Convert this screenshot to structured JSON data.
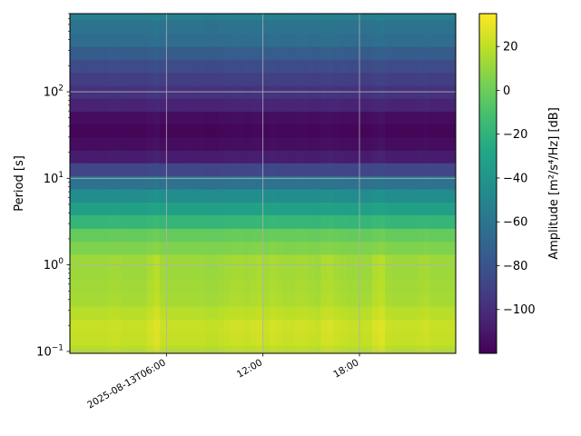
{
  "chart_data": {
    "type": "heatmap",
    "title": "",
    "xlabel": "",
    "ylabel": "Period [s]",
    "x_axis": {
      "kind": "datetime",
      "range": [
        "2025-08-13T00:00",
        "2025-08-13T23:59"
      ],
      "ticks": [
        {
          "value": "2025-08-13T06:00",
          "label": "2025-08-13T06:00"
        },
        {
          "value": "2025-08-13T12:00",
          "label": "12:00"
        },
        {
          "value": "2025-08-13T18:00",
          "label": "18:00"
        }
      ]
    },
    "y_axis": {
      "scale": "log",
      "range": [
        0.095,
        800
      ],
      "ticks": [
        {
          "value": 0.1,
          "base": "10",
          "exp": "−1"
        },
        {
          "value": 1,
          "base": "10",
          "exp": "0"
        },
        {
          "value": 10,
          "base": "10",
          "exp": "1"
        },
        {
          "value": 100,
          "base": "10",
          "exp": "2"
        }
      ]
    },
    "grid": true,
    "colorbar": {
      "label": "Amplitude [m²/s⁴/Hz] [dB]",
      "colormap": "viridis",
      "range": [
        -120,
        35
      ],
      "ticks": [
        {
          "value": 20,
          "label": "20"
        },
        {
          "value": 0,
          "label": "0"
        },
        {
          "value": -20,
          "label": "−20"
        },
        {
          "value": -40,
          "label": "−40"
        },
        {
          "value": -60,
          "label": "−60"
        },
        {
          "value": -80,
          "label": "−80"
        },
        {
          "value": -100,
          "label": "−100"
        }
      ]
    },
    "periods": [
      0.1,
      0.14,
      0.2,
      0.28,
      0.4,
      0.56,
      0.8,
      1.1,
      1.6,
      2.2,
      3.2,
      4.5,
      6.3,
      9,
      12.7,
      18,
      25,
      36,
      50,
      71,
      100,
      141,
      200,
      283,
      400,
      566,
      800
    ],
    "amplitude_profile_db": [
      18,
      21,
      22,
      18,
      14,
      13,
      12,
      12,
      5,
      -2,
      -18,
      -33,
      -45,
      -62,
      -88,
      -108,
      -115,
      -118,
      -115,
      -105,
      -98,
      -92,
      -85,
      -75,
      -65,
      -62,
      -55
    ],
    "column_offsets_db": [
      0,
      0,
      0,
      0,
      0,
      0,
      1,
      1,
      0,
      0,
      0,
      0,
      3,
      6,
      1,
      0,
      0,
      0,
      0,
      0,
      0,
      -1,
      -1,
      0,
      1,
      2,
      2,
      1,
      2,
      3,
      1,
      3,
      2,
      1,
      1,
      2,
      2,
      1,
      0,
      3,
      4,
      2,
      1,
      0,
      0,
      0,
      0,
      4,
      6,
      1,
      0,
      0,
      0,
      0,
      1,
      2,
      0,
      0,
      0,
      0
    ]
  }
}
